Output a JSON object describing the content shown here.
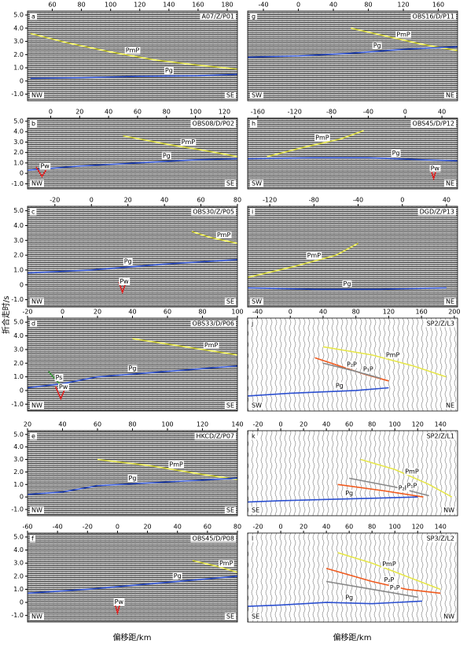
{
  "figure": {
    "ylabel": "折合走时/s",
    "xlabel": "偏移距/km"
  },
  "chart_data": [
    {
      "type": "seismic",
      "letter": "a",
      "title": "A07/Z/P01",
      "left": "NW",
      "right": "SE",
      "xlim": [
        43,
        187
      ],
      "xticks": [
        60,
        80,
        100,
        120,
        140,
        160,
        180
      ],
      "ylim": [
        -1.5,
        5.3
      ],
      "yticks": [
        {
          "value": 5,
          "label": "5.0"
        },
        {
          "value": 4,
          "label": "4.0"
        },
        {
          "value": 3,
          "label": "3.0"
        },
        {
          "value": 2,
          "label": "2.0"
        },
        {
          "value": 1,
          "label": "1.0"
        },
        0,
        {
          "value": -1,
          "label": "-1.0"
        }
      ],
      "series": [
        {
          "name": "PmP",
          "color": "#e6e64a",
          "x": [
            45,
            70,
            100,
            130,
            160,
            187
          ],
          "values": [
            3.6,
            2.9,
            2.2,
            1.6,
            1.2,
            0.9
          ]
        },
        {
          "name": "Pg",
          "color": "#2b4fd0",
          "x": [
            45,
            80,
            120,
            160,
            187
          ],
          "values": [
            0.2,
            0.25,
            0.35,
            0.4,
            0.5
          ]
        }
      ]
    },
    {
      "type": "seismic",
      "letter": "b",
      "title": "OBS08/D/P02",
      "left": "NW",
      "right": "SE",
      "xlim": [
        -16,
        129
      ],
      "xticks": [
        0,
        20,
        40,
        60,
        80,
        100,
        120
      ],
      "ylim": [
        -1.5,
        5.3
      ],
      "yticks": [
        {
          "value": 5,
          "label": "5.0"
        },
        {
          "value": 4,
          "label": "4.0"
        },
        {
          "value": 3,
          "label": "3.0"
        },
        {
          "value": 2,
          "label": "2.0"
        },
        {
          "value": 1,
          "label": "1.0"
        },
        0,
        {
          "value": -1,
          "label": "-1.0"
        }
      ],
      "series": [
        {
          "name": "PmP",
          "color": "#e6e64a",
          "x": [
            50,
            80,
            110,
            129
          ],
          "values": [
            3.6,
            2.8,
            2.1,
            1.6
          ]
        },
        {
          "name": "Pg",
          "color": "#2b4fd0",
          "x": [
            -16,
            20,
            60,
            100,
            129
          ],
          "values": [
            0.3,
            0.7,
            1.0,
            1.3,
            1.4
          ]
        },
        {
          "name": "Pw",
          "color": "#e02020",
          "x": [
            -10,
            -6,
            -2
          ],
          "values": [
            0.6,
            -0.3,
            0.6
          ]
        }
      ]
    },
    {
      "type": "seismic",
      "letter": "c",
      "title": "OBS30/Z/P05",
      "left": "NW",
      "right": "SE",
      "xlim": [
        -35,
        80
      ],
      "xticks": [
        -20,
        0,
        20,
        40,
        60,
        80
      ],
      "ylim": [
        -1.5,
        5.3
      ],
      "yticks": [
        {
          "value": 5,
          "label": "5.0"
        },
        {
          "value": 4,
          "label": "4.0"
        },
        {
          "value": 3,
          "label": "3.0"
        },
        {
          "value": 2,
          "label": "2.0"
        },
        {
          "value": 1,
          "label": "1.0"
        },
        0,
        {
          "value": -1,
          "label": "-1.0"
        }
      ],
      "series": [
        {
          "name": "PmP",
          "color": "#e6e64a",
          "x": [
            55,
            65,
            80
          ],
          "values": [
            3.6,
            3.2,
            2.8
          ]
        },
        {
          "name": "Pg",
          "color": "#2b4fd0",
          "x": [
            -35,
            0,
            40,
            80
          ],
          "values": [
            0.8,
            1.0,
            1.4,
            1.7
          ]
        },
        {
          "name": "Pw",
          "color": "#e02020",
          "x": [
            15,
            17,
            19
          ],
          "values": [
            0.2,
            -0.5,
            0.2
          ]
        }
      ]
    },
    {
      "type": "seismic",
      "letter": "d",
      "title": "OBS33/D/P06",
      "left": "NW",
      "right": "SE",
      "xlim": [
        -20,
        100
      ],
      "xticks": [
        -20,
        0,
        20,
        40,
        60,
        80,
        100
      ],
      "ylim": [
        -1.5,
        5.3
      ],
      "yticks": [
        {
          "value": 5,
          "label": "5.0"
        },
        {
          "value": 4,
          "label": "4.0"
        },
        {
          "value": 3,
          "label": "3.0"
        },
        {
          "value": 2,
          "label": "2.0"
        },
        {
          "value": 1,
          "label": "1.0"
        },
        0,
        {
          "value": -1,
          "label": "-1.0"
        }
      ],
      "series": [
        {
          "name": "PmP",
          "color": "#e6e64a",
          "x": [
            40,
            70,
            100
          ],
          "values": [
            3.8,
            3.2,
            2.6
          ]
        },
        {
          "name": "Pg",
          "color": "#2b4fd0",
          "x": [
            -20,
            0,
            20,
            60,
            100
          ],
          "values": [
            0.2,
            0.5,
            1.0,
            1.4,
            1.8
          ]
        },
        {
          "name": "Ps",
          "color": "#3a9a3a",
          "x": [
            -8,
            -4,
            0
          ],
          "values": [
            1.4,
            0.8,
            0.3
          ]
        },
        {
          "name": "Pw",
          "color": "#e02020",
          "x": [
            -4,
            -1,
            2
          ],
          "values": [
            0.3,
            -0.6,
            0.3
          ]
        }
      ]
    },
    {
      "type": "seismic",
      "letter": "e",
      "title": "HKCD/Z/P07",
      "left": "NW",
      "right": "SE",
      "xlim": [
        20,
        140
      ],
      "xticks": [
        20,
        40,
        60,
        80,
        100,
        120,
        140
      ],
      "ylim": [
        -1.5,
        5.3
      ],
      "yticks": [
        {
          "value": 5,
          "label": "5.0"
        },
        {
          "value": 4,
          "label": "4.0"
        },
        {
          "value": 3,
          "label": "3.0"
        },
        {
          "value": 2,
          "label": "2.0"
        },
        {
          "value": 1,
          "label": "1.0"
        },
        0,
        {
          "value": -1,
          "label": "-1.0"
        }
      ],
      "series": [
        {
          "name": "PmP",
          "color": "#e6e64a",
          "x": [
            60,
            90,
            120,
            140
          ],
          "values": [
            3.0,
            2.5,
            1.8,
            1.4
          ]
        },
        {
          "name": "Pg",
          "color": "#2b4fd0",
          "x": [
            20,
            40,
            60,
            100,
            140
          ],
          "values": [
            0.2,
            0.4,
            0.9,
            1.2,
            1.5
          ]
        }
      ]
    },
    {
      "type": "seismic",
      "letter": "f",
      "title": "OBS45/D/P08",
      "left": "NW",
      "right": "SE",
      "xlim": [
        -60,
        80
      ],
      "xticks": [
        -60,
        -40,
        -20,
        0,
        20,
        40,
        60,
        80
      ],
      "ylim": [
        -1.5,
        5.3
      ],
      "yticks": [
        {
          "value": 5,
          "label": "5.0"
        },
        {
          "value": 4,
          "label": "4.0"
        },
        {
          "value": 3,
          "label": "3.0"
        },
        {
          "value": 2,
          "label": "2.0"
        },
        {
          "value": 1,
          "label": "1.0"
        },
        0,
        {
          "value": -1,
          "label": "-1.0"
        }
      ],
      "series": [
        {
          "name": "PmP",
          "color": "#e6e64a",
          "x": [
            50,
            65,
            80
          ],
          "values": [
            3.2,
            2.8,
            2.3
          ]
        },
        {
          "name": "Pg",
          "color": "#2b4fd0",
          "x": [
            -60,
            -20,
            20,
            60,
            80
          ],
          "values": [
            0.7,
            1.0,
            1.4,
            1.8,
            2.0
          ]
        },
        {
          "name": "Pw",
          "color": "#e02020",
          "x": [
            -2,
            0,
            2
          ],
          "values": [
            0.0,
            -0.8,
            0.0
          ]
        }
      ]
    },
    {
      "type": "seismic",
      "letter": "g",
      "title": "OBS16/D/P11",
      "left": "SW",
      "right": "NE",
      "xlim": [
        -58,
        182
      ],
      "xticks": [
        -40,
        0,
        40,
        80,
        120,
        160
      ],
      "ylim": [
        -1.5,
        5.3
      ],
      "series": [
        {
          "name": "PmP",
          "color": "#e6e64a",
          "x": [
            60,
            100,
            140,
            182
          ],
          "values": [
            4.0,
            3.4,
            2.8,
            2.3
          ]
        },
        {
          "name": "Pg",
          "color": "#2b4fd0",
          "x": [
            -58,
            0,
            60,
            120,
            182
          ],
          "values": [
            1.8,
            1.9,
            2.1,
            2.4,
            2.6
          ]
        }
      ]
    },
    {
      "type": "seismic",
      "letter": "h",
      "title": "OBS45/D/P12",
      "left": "SW",
      "right": "NE",
      "xlim": [
        -171,
        57
      ],
      "xticks": [
        -160,
        -120,
        -80,
        -40,
        0,
        40
      ],
      "ylim": [
        -1.5,
        5.3
      ],
      "series": [
        {
          "name": "PmP",
          "color": "#e6e64a",
          "x": [
            -150,
            -110,
            -70,
            -45
          ],
          "values": [
            1.6,
            2.5,
            3.3,
            4.1
          ]
        },
        {
          "name": "Pg",
          "color": "#2b4fd0",
          "x": [
            -171,
            -100,
            -40,
            20,
            57
          ],
          "values": [
            1.4,
            1.5,
            1.5,
            1.3,
            1.2
          ]
        },
        {
          "name": "Pw",
          "color": "#e02020",
          "x": [
            28,
            31,
            34
          ],
          "values": [
            0.4,
            -0.5,
            0.4
          ]
        }
      ]
    },
    {
      "type": "seismic",
      "letter": "i",
      "title": "DGD/Z/P13",
      "left": "SW",
      "right": "NE",
      "xlim": [
        -140,
        50
      ],
      "xticks": [
        -120,
        -80,
        -40,
        0,
        40
      ],
      "ylim": [
        -1.5,
        5.3
      ],
      "series": [
        {
          "name": "PmP",
          "color": "#e6e64a",
          "x": [
            -140,
            -100,
            -60,
            -40
          ],
          "values": [
            0.5,
            1.2,
            2.0,
            2.8
          ]
        },
        {
          "name": "Pg",
          "color": "#2b4fd0",
          "x": [
            -140,
            -80,
            -20,
            40
          ],
          "values": [
            -0.2,
            -0.3,
            -0.3,
            -0.2
          ]
        }
      ]
    },
    {
      "type": "wiggle",
      "letter": "j",
      "title": "SP2/Z/L3",
      "left": "SW",
      "right": "NE",
      "xlim": [
        -52,
        204
      ],
      "xticks": [
        -40,
        0,
        40,
        80,
        120,
        160,
        200
      ],
      "ylim": [
        -1.5,
        5.3
      ],
      "series": [
        {
          "name": "PmP",
          "color": "#e6e64a",
          "x": [
            40,
            100,
            150,
            190
          ],
          "values": [
            3.2,
            2.6,
            1.8,
            1.0
          ]
        },
        {
          "name": "P₂P",
          "color": "#f05a1e",
          "x": [
            30,
            60,
            90,
            120
          ],
          "values": [
            2.4,
            1.8,
            1.2,
            0.7
          ]
        },
        {
          "name": "P₁P",
          "color": "#888888",
          "x": [
            40,
            80,
            110
          ],
          "values": [
            2.0,
            1.4,
            0.9
          ]
        },
        {
          "name": "Pg",
          "color": "#2b4fd0",
          "x": [
            -52,
            0,
            40,
            80,
            120
          ],
          "values": [
            -0.4,
            -0.2,
            -0.1,
            0.0,
            0.2
          ]
        }
      ]
    },
    {
      "type": "wiggle",
      "letter": "k",
      "title": "SP2/Z/L1",
      "left": "SE",
      "right": "NW",
      "xlim": [
        -29,
        155
      ],
      "xticks": [
        -20,
        0,
        20,
        40,
        60,
        80,
        100,
        120,
        140
      ],
      "ylim": [
        -1.5,
        5.3
      ],
      "series": [
        {
          "name": "PmP",
          "color": "#e6e64a",
          "x": [
            70,
            100,
            130,
            150
          ],
          "values": [
            3.0,
            2.2,
            1.0,
            0.0
          ]
        },
        {
          "name": "P₂P",
          "color": "#f05a1e",
          "x": [
            50,
            90,
            125
          ],
          "values": [
            1.0,
            0.5,
            0.0
          ]
        },
        {
          "name": "P₁P",
          "color": "#888888",
          "x": [
            60,
            100,
            130
          ],
          "values": [
            1.5,
            0.8,
            0.1
          ]
        },
        {
          "name": "Pg",
          "color": "#2b4fd0",
          "x": [
            -29,
            0,
            40,
            80,
            120
          ],
          "values": [
            -0.4,
            -0.3,
            -0.2,
            -0.1,
            0.0
          ]
        }
      ]
    },
    {
      "type": "wiggle",
      "letter": "l",
      "title": "SP3/Z/L2",
      "left": "SE",
      "right": "NW",
      "xlim": [
        -29,
        155
      ],
      "xticks": [
        -20,
        0,
        20,
        40,
        60,
        80,
        100,
        120,
        140
      ],
      "ylim": [
        -1.5,
        5.3
      ],
      "series": [
        {
          "name": "PmP",
          "color": "#e6e64a",
          "x": [
            50,
            80,
            110,
            140
          ],
          "values": [
            3.8,
            3.0,
            2.0,
            1.0
          ]
        },
        {
          "name": "P₂P",
          "color": "#f05a1e",
          "x": [
            40,
            80,
            110,
            140
          ],
          "values": [
            2.6,
            1.6,
            1.0,
            0.7
          ]
        },
        {
          "name": "P₁P",
          "color": "#888888",
          "x": [
            40,
            80,
            120
          ],
          "values": [
            1.6,
            1.0,
            0.4
          ]
        },
        {
          "name": "Pg",
          "color": "#2b4fd0",
          "x": [
            -29,
            0,
            40,
            80,
            124
          ],
          "values": [
            -0.3,
            -0.2,
            0.0,
            -0.1,
            0.1
          ]
        }
      ]
    }
  ]
}
